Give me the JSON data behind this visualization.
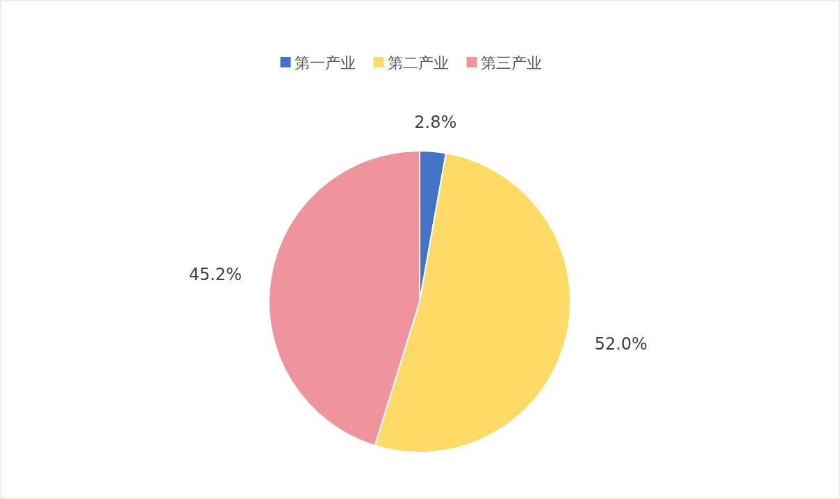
{
  "chart_data": {
    "type": "pie",
    "categories": [
      "第一产业",
      "第二产业",
      "第三产业"
    ],
    "values": [
      2.8,
      52.0,
      45.2
    ],
    "colors": [
      "#4472c4",
      "#fdd966",
      "#ef949c"
    ],
    "value_labels": [
      "2.8%",
      "52.0%",
      "45.2%"
    ],
    "legend": "top"
  }
}
